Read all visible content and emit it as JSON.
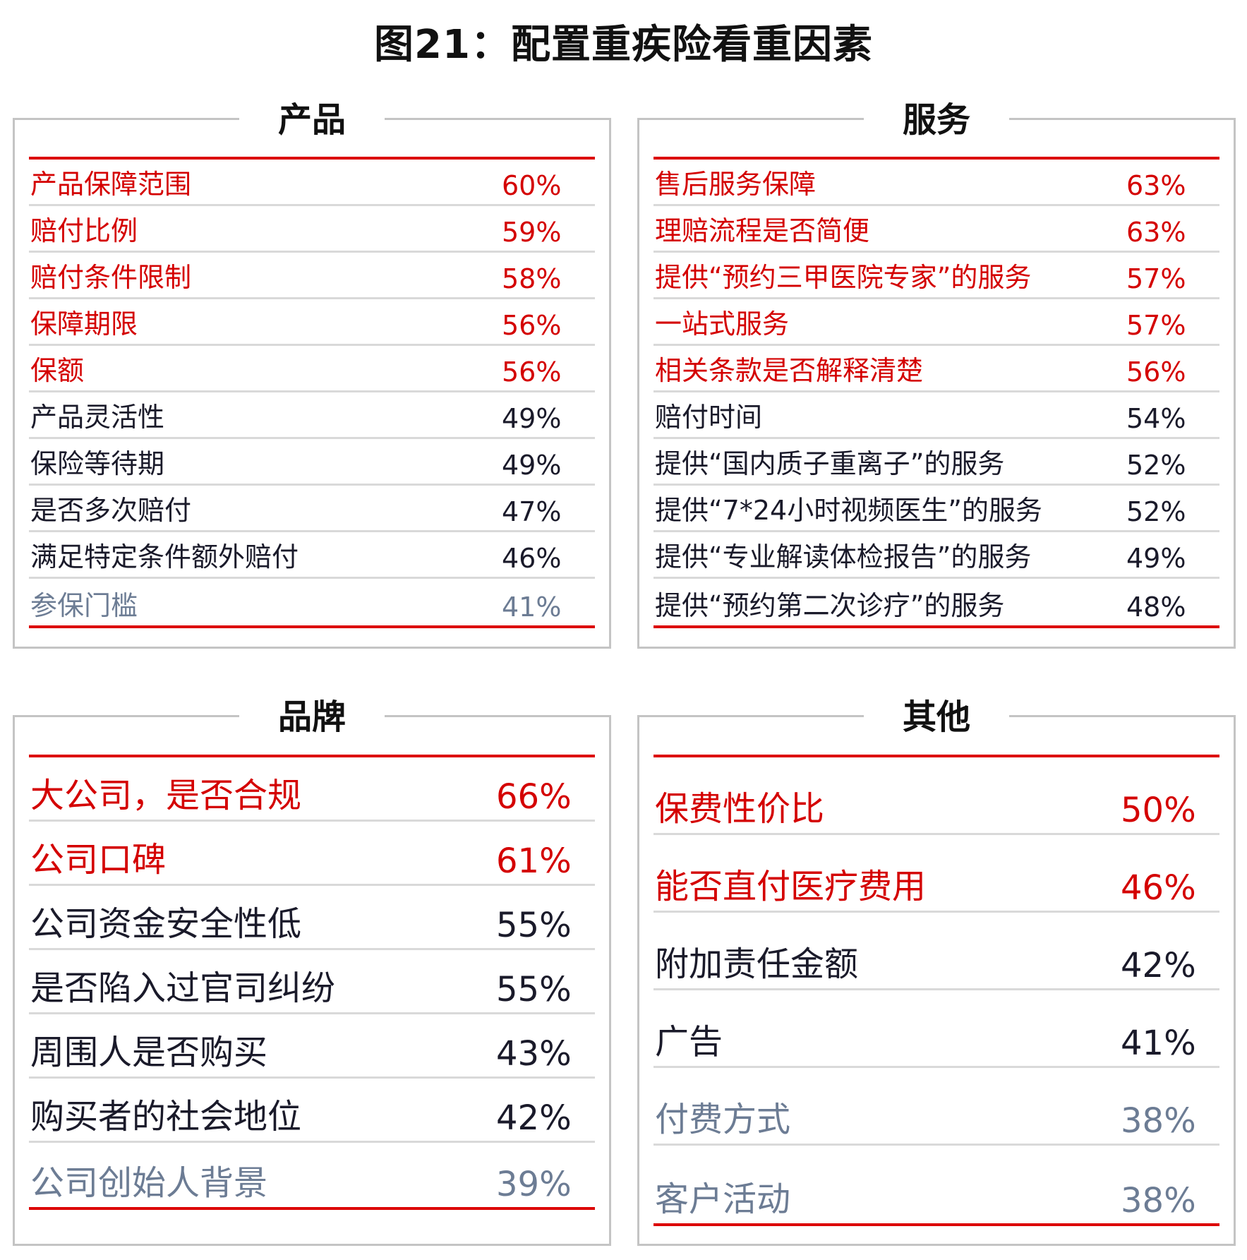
{
  "title": "图21：配置重疾险看重因素",
  "panels": [
    {
      "heading": "产品",
      "rows": [
        {
          "label": "产品保障范围",
          "value": "60%",
          "tone": "red"
        },
        {
          "label": "赔付比例",
          "value": "59%",
          "tone": "red"
        },
        {
          "label": "赔付条件限制",
          "value": "58%",
          "tone": "red"
        },
        {
          "label": "保障期限",
          "value": "56%",
          "tone": "red"
        },
        {
          "label": "保额",
          "value": "56%",
          "tone": "red"
        },
        {
          "label": "产品灵活性",
          "value": "49%",
          "tone": "dark"
        },
        {
          "label": "保险等待期",
          "value": "49%",
          "tone": "dark"
        },
        {
          "label": "是否多次赔付",
          "value": "47%",
          "tone": "dark"
        },
        {
          "label": "满足特定条件额外赔付",
          "value": "46%",
          "tone": "dark"
        },
        {
          "label": "参保门槛",
          "value": "41%",
          "tone": "grey"
        }
      ]
    },
    {
      "heading": "服务",
      "rows": [
        {
          "label": "售后服务保障",
          "value": "63%",
          "tone": "red"
        },
        {
          "label": "理赔流程是否简便",
          "value": "63%",
          "tone": "red"
        },
        {
          "label": "提供“预约三甲医院专家”的服务",
          "value": "57%",
          "tone": "red"
        },
        {
          "label": "一站式服务",
          "value": "57%",
          "tone": "red"
        },
        {
          "label": "相关条款是否解释清楚",
          "value": "56%",
          "tone": "red"
        },
        {
          "label": "赔付时间",
          "value": "54%",
          "tone": "dark"
        },
        {
          "label": "提供“国内质子重离子”的服务",
          "value": "52%",
          "tone": "dark"
        },
        {
          "label": "提供“7*24小时视频医生”的服务",
          "value": "52%",
          "tone": "dark"
        },
        {
          "label": "提供“专业解读体检报告”的服务",
          "value": "49%",
          "tone": "dark"
        },
        {
          "label": "提供“预约第二次诊疗”的服务",
          "value": "48%",
          "tone": "dark"
        }
      ]
    },
    {
      "heading": "品牌",
      "rows": [
        {
          "label": "大公司，是否合规",
          "value": "66%",
          "tone": "red"
        },
        {
          "label": "公司口碑",
          "value": "61%",
          "tone": "red"
        },
        {
          "label": "公司资金安全性低",
          "value": "55%",
          "tone": "dark"
        },
        {
          "label": "是否陷入过官司纠纷",
          "value": "55%",
          "tone": "dark"
        },
        {
          "label": "周围人是否购买",
          "value": "43%",
          "tone": "dark"
        },
        {
          "label": "购买者的社会地位",
          "value": "42%",
          "tone": "dark"
        },
        {
          "label": "公司创始人背景",
          "value": "39%",
          "tone": "grey"
        }
      ]
    },
    {
      "heading": "其他",
      "rows": [
        {
          "label": "保费性价比",
          "value": "50%",
          "tone": "red"
        },
        {
          "label": "能否直付医疗费用",
          "value": "46%",
          "tone": "red"
        },
        {
          "label": "附加责任金额",
          "value": "42%",
          "tone": "dark"
        },
        {
          "label": "广告",
          "value": "41%",
          "tone": "dark"
        },
        {
          "label": "付费方式",
          "value": "38%",
          "tone": "grey"
        },
        {
          "label": "客户活动",
          "value": "38%",
          "tone": "grey"
        }
      ]
    }
  ],
  "colors": {
    "accent": "#dc0000",
    "highlight": "#d40000",
    "normal": "#1a1a2a",
    "muted": "#6c7c94",
    "border": "#c4c4c4"
  }
}
